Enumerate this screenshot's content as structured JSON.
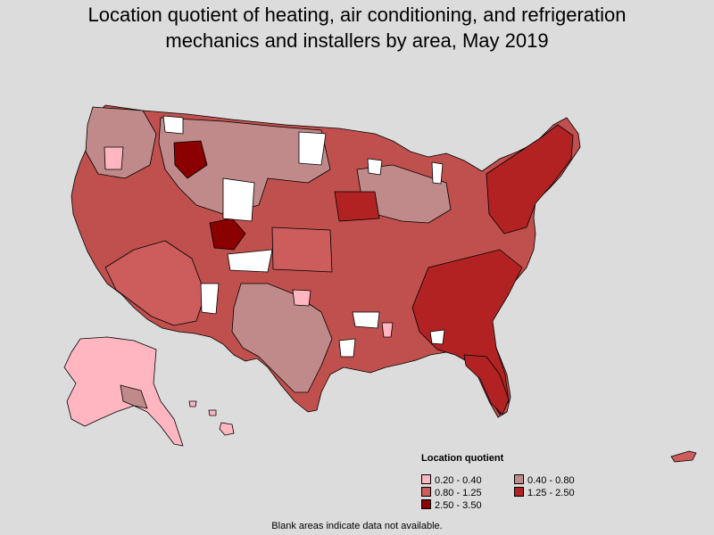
{
  "title": {
    "line1": "Location quotient of heating, air conditioning, and refrigeration",
    "line2": "mechanics and installers by area, May 2019"
  },
  "legend": {
    "title": "Location quotient",
    "items": [
      {
        "label": "0.20 - 0.40",
        "color": "#ffb6c1"
      },
      {
        "label": "0.40 - 0.80",
        "color": "#c08a8a"
      },
      {
        "label": "0.80 - 1.25",
        "color": "#cd5c5c"
      },
      {
        "label": "1.25 - 2.50",
        "color": "#b22222"
      },
      {
        "label": "2.50 - 3.50",
        "color": "#8b0000"
      }
    ]
  },
  "footnote": "Blank areas indicate data not available."
}
